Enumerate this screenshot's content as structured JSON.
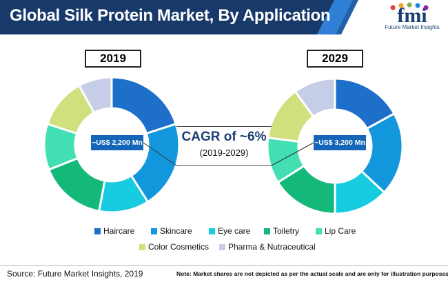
{
  "header": {
    "title": "Global Silk Protein Market, By Application",
    "background": "#173a6b",
    "stripe_color": "#2f7fd6"
  },
  "logo": {
    "text": "fmi",
    "subtitle": "Future Market Insights",
    "dot_colors": [
      "#e53935",
      "#f4a51c",
      "#7cb342",
      "#1e88e5",
      "#8e24aa"
    ]
  },
  "cagr": {
    "title": "CAGR of ~6%",
    "period": "(2019-2029)"
  },
  "footer": {
    "source": "Source: Future Market Insights, 2019",
    "note": "Note: Market shares are not depicted as per the actual scale and are only for illustration purposes."
  },
  "chart_data": [
    {
      "type": "pie",
      "donut": true,
      "title": "2019",
      "center_label": "~US$ 2,200 Mn",
      "categories": [
        "Haircare",
        "Skincare",
        "Eye care",
        "Toiletry",
        "Lip Care",
        "Color Cosmetics",
        "Pharma & Nutraceutical"
      ],
      "values": [
        20,
        21,
        12,
        16,
        11,
        12,
        8
      ],
      "colors": [
        "#1d6fc9",
        "#1296dc",
        "#17cbe0",
        "#14b879",
        "#42dfb3",
        "#cfe07c",
        "#c6cde6"
      ]
    },
    {
      "type": "pie",
      "donut": true,
      "title": "2029",
      "center_label": "~US$ 3,200 Mn",
      "categories": [
        "Haircare",
        "Skincare",
        "Eye care",
        "Toiletry",
        "Lip Care",
        "Color Cosmetics",
        "Pharma & Nutraceutical"
      ],
      "values": [
        17,
        20,
        13,
        16,
        11,
        13,
        10
      ],
      "colors": [
        "#1d6fc9",
        "#1296dc",
        "#17cbe0",
        "#14b879",
        "#42dfb3",
        "#cfe07c",
        "#c6cde6"
      ]
    }
  ],
  "legend": {
    "items": [
      {
        "label": "Haircare",
        "color": "#1d6fc9"
      },
      {
        "label": "Skincare",
        "color": "#1296dc"
      },
      {
        "label": "Eye care",
        "color": "#17cbe0"
      },
      {
        "label": "Toiletry",
        "color": "#14b879"
      },
      {
        "label": "Lip Care",
        "color": "#42dfb3"
      },
      {
        "label": "Color Cosmetics",
        "color": "#cfe07c"
      },
      {
        "label": "Pharma & Nutraceutical",
        "color": "#c6cde6"
      }
    ]
  }
}
